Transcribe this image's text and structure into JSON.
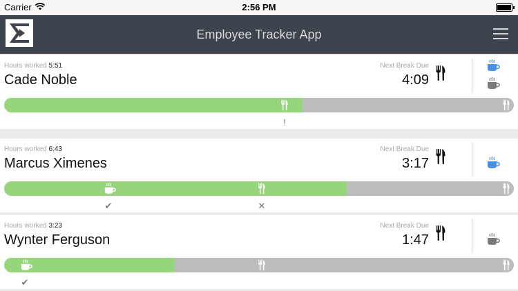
{
  "status_bar": {
    "carrier": "Carrier",
    "time": "2:56 PM"
  },
  "nav": {
    "title": "Employee Tracker App"
  },
  "labels": {
    "hours_worked": "Hours worked",
    "next_break": "Next Break Due"
  },
  "colors": {
    "worked": "#97d57d",
    "remaining": "#bcbcbc",
    "active_cup": "#4a90e2",
    "inactive_cup": "#7a7a7a"
  },
  "employees": [
    {
      "name": "Cade Noble",
      "hours": "5:51",
      "next_break": "4:09",
      "progress": 0.585,
      "cups": [
        "active",
        "inactive"
      ],
      "markers": [
        {
          "icon": "fork-icon",
          "at": 0.55
        },
        {
          "icon": "fork-icon",
          "at": 0.985
        }
      ],
      "below": [
        {
          "text": "!",
          "at": 0.55
        }
      ]
    },
    {
      "name": "Marcus Ximenes",
      "hours": "6:43",
      "next_break": "3:17",
      "progress": 0.672,
      "cups": [
        "active"
      ],
      "markers": [
        {
          "icon": "coffee-icon",
          "at": 0.205
        },
        {
          "icon": "fork-icon",
          "at": 0.505
        },
        {
          "icon": "fork-icon",
          "at": 0.985
        }
      ],
      "below": [
        {
          "text": "✔",
          "at": 0.205
        },
        {
          "text": "✕",
          "at": 0.505
        }
      ]
    },
    {
      "name": "Wynter Ferguson",
      "hours": "3:23",
      "next_break": "1:47",
      "progress": 0.335,
      "cups": [
        "inactive"
      ],
      "markers": [
        {
          "icon": "coffee-icon",
          "at": 0.04
        },
        {
          "icon": "fork-icon",
          "at": 0.505
        },
        {
          "icon": "fork-icon",
          "at": 0.985
        }
      ],
      "below": [
        {
          "text": "✔",
          "at": 0.04
        }
      ]
    }
  ]
}
